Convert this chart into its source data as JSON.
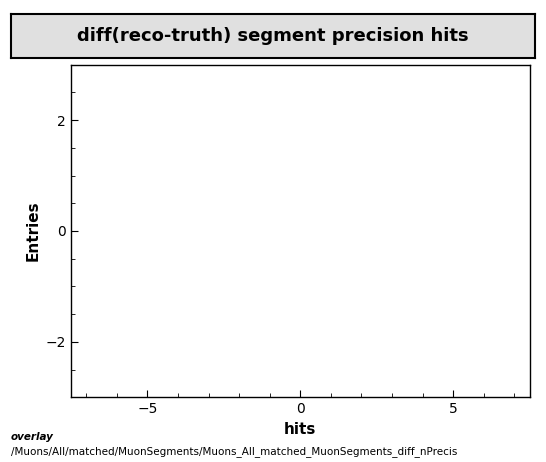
{
  "title": "diff(reco-truth) segment precision hits",
  "xlabel": "hits",
  "ylabel": "Entries",
  "xlim": [
    -7.5,
    7.5
  ],
  "ylim": [
    -3.0,
    3.0
  ],
  "xticks": [
    -5,
    0,
    5
  ],
  "yticks": [
    -2,
    0,
    2
  ],
  "footer_line1": "overlay",
  "footer_line2": "/Muons/All/matched/MuonSegments/Muons_All_matched_MuonSegments_diff_nPrecis",
  "title_fontsize": 13,
  "axis_label_fontsize": 11,
  "tick_fontsize": 10,
  "footer_fontsize": 7.5,
  "background_color": "#ffffff",
  "plot_bg_color": "#ffffff",
  "title_box_facecolor": "#e0e0e0"
}
